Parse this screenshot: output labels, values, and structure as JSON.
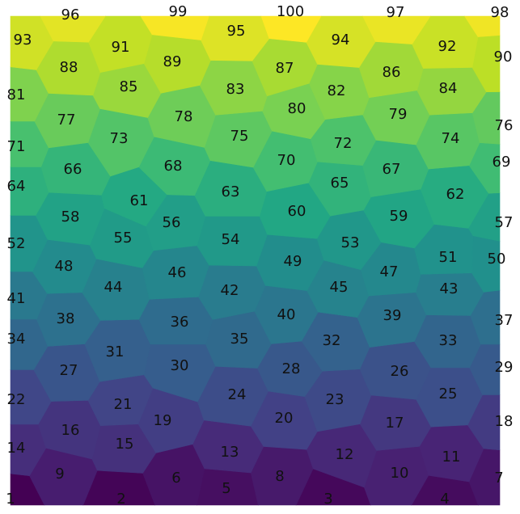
{
  "chart_data": {
    "type": "voronoi",
    "colormap": "viridis",
    "xlim": [
      0,
      605
    ],
    "ylim": [
      0,
      605
    ],
    "values": [
      1,
      2,
      3,
      4,
      5,
      6,
      7,
      8,
      9,
      10,
      11,
      12,
      13,
      14,
      15,
      16,
      17,
      18,
      19,
      20,
      21,
      22,
      23,
      24,
      25,
      26,
      27,
      28,
      29,
      30,
      31,
      32,
      33,
      34,
      35,
      36,
      37,
      38,
      39,
      40,
      41,
      42,
      43,
      44,
      45,
      46,
      47,
      48,
      49,
      50,
      51,
      52,
      53,
      54,
      55,
      56,
      57,
      58,
      59,
      60,
      61,
      62,
      63,
      64,
      65,
      66,
      67,
      68,
      69,
      70,
      71,
      72,
      73,
      74,
      75,
      76,
      77,
      78,
      79,
      80,
      81,
      82,
      83,
      84,
      85,
      86,
      87,
      88,
      89,
      90,
      91,
      92,
      93,
      94,
      95,
      96,
      97,
      98,
      99,
      100
    ],
    "x": [
      0,
      137,
      393,
      537,
      267,
      205,
      604,
      333,
      61,
      481,
      545,
      413,
      271,
      7,
      141,
      74,
      475,
      610,
      188,
      338,
      139,
      7,
      401,
      280,
      541,
      481,
      72,
      347,
      610,
      209,
      129,
      397,
      541,
      7,
      283,
      209,
      610,
      68,
      472,
      341,
      7,
      271,
      542,
      127,
      406,
      206,
      468,
      66,
      349,
      601,
      541,
      7,
      420,
      272,
      139,
      199,
      610,
      74,
      480,
      354,
      159,
      550,
      272,
      7,
      407,
      77,
      471,
      201,
      607,
      341,
      7,
      411,
      134,
      544,
      283,
      610,
      69,
      214,
      479,
      354,
      7,
      403,
      278,
      541,
      146,
      471,
      339,
      72,
      200,
      609,
      136,
      540,
      15,
      408,
      279,
      74,
      476,
      605,
      207,
      346
    ],
    "y": [
      7,
      7,
      7,
      7,
      20,
      33,
      33,
      35,
      38,
      39,
      59,
      62,
      65,
      70,
      75,
      92,
      101,
      103,
      104,
      107,
      124,
      130,
      130,
      136,
      137,
      165,
      166,
      168,
      170,
      172,
      189,
      203,
      203,
      205,
      205,
      226,
      228,
      230,
      234,
      235,
      255,
      265,
      267,
      269,
      269,
      287,
      288,
      295,
      301,
      304,
      306,
      323,
      324,
      328,
      330,
      349,
      349,
      356,
      357,
      363,
      376,
      384,
      387,
      394,
      398,
      415,
      415,
      419,
      424,
      426,
      443,
      447,
      453,
      453,
      456,
      469,
      476,
      480,
      483,
      490,
      507,
      512,
      514,
      515,
      517,
      535,
      540,
      541,
      548,
      554,
      566,
      567,
      575,
      575,
      586,
      606,
      609,
      609,
      610,
      610
    ]
  }
}
